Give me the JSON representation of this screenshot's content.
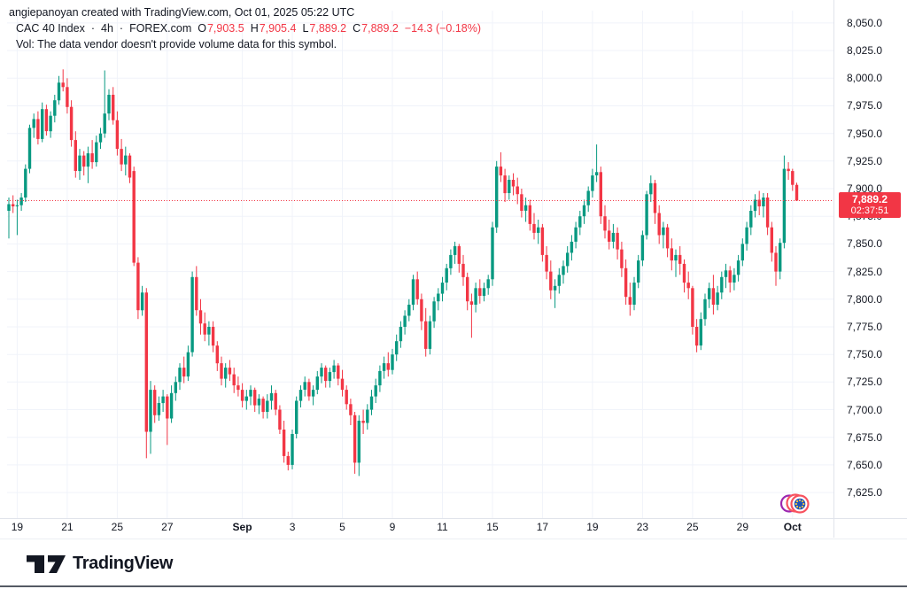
{
  "attribution": "angiepanoyan created with TradingView.com, Oct 01, 2025 05:22 UTC",
  "legend": {
    "symbol": "CAC 40 Index",
    "dot1": "·",
    "interval": "4h",
    "dot2": "·",
    "exchange": "FOREX.com",
    "o_label": "O",
    "o_value": "7,903.5",
    "h_label": "H",
    "h_value": "7,905.4",
    "l_label": "L",
    "l_value": "7,889.2",
    "c_label": "C",
    "c_value": "7,889.2",
    "change": "−14.3 (−0.18%)",
    "vol_text": "Vol: The data vendor doesn't provide volume data for this symbol."
  },
  "price_scale": {
    "last_price_label": "7,889.2",
    "countdown": "02:37:51",
    "ticks": [
      {
        "value": 8050,
        "label": "8,050.0"
      },
      {
        "value": 8025,
        "label": "8,025.0"
      },
      {
        "value": 8000,
        "label": "8,000.0"
      },
      {
        "value": 7975,
        "label": "7,975.0"
      },
      {
        "value": 7950,
        "label": "7,950.0"
      },
      {
        "value": 7925,
        "label": "7,925.0"
      },
      {
        "value": 7900,
        "label": "7,900.0"
      },
      {
        "value": 7875,
        "label": "7,875.0"
      },
      {
        "value": 7850,
        "label": "7,850.0"
      },
      {
        "value": 7825,
        "label": "7,825.0"
      },
      {
        "value": 7800,
        "label": "7,800.0"
      },
      {
        "value": 7775,
        "label": "7,775.0"
      },
      {
        "value": 7750,
        "label": "7,750.0"
      },
      {
        "value": 7725,
        "label": "7,725.0"
      },
      {
        "value": 7700,
        "label": "7,700.0"
      },
      {
        "value": 7675,
        "label": "7,675.0"
      },
      {
        "value": 7650,
        "label": "7,650.0"
      },
      {
        "value": 7625,
        "label": "7,625.0"
      }
    ]
  },
  "footer": {
    "brand": "TradingView"
  },
  "chart_data": {
    "type": "candlestick",
    "title": "CAC 40 Index",
    "interval": "4h",
    "exchange": "FOREX.com",
    "current_bar": {
      "open": 7903.5,
      "high": 7905.4,
      "low": 7889.2,
      "close": 7889.2,
      "change": -14.3,
      "change_pct": -0.18,
      "countdown": "02:37:51"
    },
    "last_price": 7889.2,
    "y_axis": {
      "min": 7625,
      "max": 8050,
      "step": 25
    },
    "colors": {
      "up": "#089981",
      "down": "#F23645",
      "grid": "#f0f3fa",
      "last_line": "#F23645"
    },
    "x_labels": [
      {
        "i": 2,
        "t": "19",
        "bold": false
      },
      {
        "i": 14,
        "t": "21",
        "bold": false
      },
      {
        "i": 26,
        "t": "25",
        "bold": false
      },
      {
        "i": 38,
        "t": "27",
        "bold": false
      },
      {
        "i": 56,
        "t": "Sep",
        "bold": true
      },
      {
        "i": 68,
        "t": "3",
        "bold": false
      },
      {
        "i": 80,
        "t": "5",
        "bold": false
      },
      {
        "i": 92,
        "t": "9",
        "bold": false
      },
      {
        "i": 104,
        "t": "11",
        "bold": false
      },
      {
        "i": 116,
        "t": "15",
        "bold": false
      },
      {
        "i": 128,
        "t": "17",
        "bold": false
      },
      {
        "i": 140,
        "t": "19",
        "bold": false
      },
      {
        "i": 152,
        "t": "23",
        "bold": false
      },
      {
        "i": 164,
        "t": "25",
        "bold": false
      },
      {
        "i": 176,
        "t": "29",
        "bold": false
      },
      {
        "i": 188,
        "t": "Oct",
        "bold": true
      }
    ],
    "candles": [
      [
        7880,
        7892,
        7855,
        7886
      ],
      [
        7886,
        7894,
        7878,
        7884
      ],
      [
        7884,
        7890,
        7858,
        7885
      ],
      [
        7885,
        7896,
        7880,
        7892
      ],
      [
        7892,
        7922,
        7888,
        7918
      ],
      [
        7918,
        7958,
        7914,
        7955
      ],
      [
        7955,
        7968,
        7946,
        7963
      ],
      [
        7963,
        7970,
        7940,
        7945
      ],
      [
        7945,
        7978,
        7942,
        7972
      ],
      [
        7972,
        7976,
        7948,
        7952
      ],
      [
        7952,
        7970,
        7946,
        7966
      ],
      [
        7966,
        7985,
        7960,
        7980
      ],
      [
        7980,
        8002,
        7976,
        7996
      ],
      [
        7996,
        8008,
        7988,
        7992
      ],
      [
        7992,
        8000,
        7968,
        7974
      ],
      [
        7974,
        7980,
        7938,
        7944
      ],
      [
        7944,
        7952,
        7910,
        7916
      ],
      [
        7916,
        7936,
        7908,
        7930
      ],
      [
        7930,
        7934,
        7912,
        7920
      ],
      [
        7920,
        7938,
        7905,
        7932
      ],
      [
        7932,
        7944,
        7918,
        7924
      ],
      [
        7924,
        7948,
        7920,
        7942
      ],
      [
        7942,
        7955,
        7936,
        7950
      ],
      [
        7950,
        8007,
        7946,
        7968
      ],
      [
        7968,
        7990,
        7962,
        7985
      ],
      [
        7985,
        7992,
        7958,
        7962
      ],
      [
        7962,
        7970,
        7930,
        7936
      ],
      [
        7936,
        7945,
        7916,
        7922
      ],
      [
        7922,
        7938,
        7912,
        7930
      ],
      [
        7930,
        7932,
        7905,
        7910
      ],
      [
        7916,
        7920,
        7830,
        7833
      ],
      [
        7833,
        7838,
        7782,
        7790
      ],
      [
        7790,
        7812,
        7785,
        7806
      ],
      [
        7806,
        7810,
        7656,
        7680
      ],
      [
        7680,
        7726,
        7660,
        7718
      ],
      [
        7718,
        7722,
        7688,
        7695
      ],
      [
        7695,
        7712,
        7690,
        7706
      ],
      [
        7706,
        7718,
        7698,
        7712
      ],
      [
        7712,
        7714,
        7668,
        7692
      ],
      [
        7692,
        7722,
        7688,
        7715
      ],
      [
        7715,
        7730,
        7708,
        7725
      ],
      [
        7725,
        7742,
        7718,
        7738
      ],
      [
        7738,
        7748,
        7724,
        7730
      ],
      [
        7730,
        7758,
        7726,
        7752
      ],
      [
        7752,
        7825,
        7748,
        7820
      ],
      [
        7820,
        7830,
        7785,
        7790
      ],
      [
        7790,
        7800,
        7768,
        7778
      ],
      [
        7778,
        7788,
        7762,
        7768
      ],
      [
        7768,
        7780,
        7758,
        7775
      ],
      [
        7775,
        7780,
        7752,
        7758
      ],
      [
        7758,
        7762,
        7735,
        7742
      ],
      [
        7742,
        7748,
        7722,
        7728
      ],
      [
        7728,
        7742,
        7720,
        7738
      ],
      [
        7738,
        7745,
        7726,
        7732
      ],
      [
        7732,
        7738,
        7715,
        7722
      ],
      [
        7722,
        7730,
        7712,
        7718
      ],
      [
        7718,
        7724,
        7702,
        7708
      ],
      [
        7708,
        7718,
        7700,
        7712
      ],
      [
        7712,
        7722,
        7704,
        7718
      ],
      [
        7718,
        7720,
        7698,
        7704
      ],
      [
        7704,
        7714,
        7696,
        7710
      ],
      [
        7710,
        7712,
        7692,
        7698
      ],
      [
        7698,
        7714,
        7692,
        7708
      ],
      [
        7708,
        7722,
        7700,
        7715
      ],
      [
        7715,
        7718,
        7695,
        7700
      ],
      [
        7700,
        7704,
        7678,
        7682
      ],
      [
        7682,
        7690,
        7652,
        7658
      ],
      [
        7658,
        7662,
        7645,
        7650
      ],
      [
        7650,
        7682,
        7646,
        7678
      ],
      [
        7678,
        7712,
        7674,
        7708
      ],
      [
        7708,
        7722,
        7702,
        7718
      ],
      [
        7718,
        7730,
        7712,
        7725
      ],
      [
        7725,
        7728,
        7708,
        7712
      ],
      [
        7712,
        7722,
        7704,
        7718
      ],
      [
        7718,
        7735,
        7714,
        7730
      ],
      [
        7730,
        7742,
        7724,
        7738
      ],
      [
        7738,
        7740,
        7720,
        7726
      ],
      [
        7726,
        7738,
        7720,
        7734
      ],
      [
        7734,
        7745,
        7728,
        7740
      ],
      [
        7740,
        7742,
        7722,
        7728
      ],
      [
        7728,
        7736,
        7712,
        7718
      ],
      [
        7718,
        7722,
        7700,
        7705
      ],
      [
        7705,
        7710,
        7686,
        7695
      ],
      [
        7695,
        7698,
        7642,
        7652
      ],
      [
        7652,
        7695,
        7640,
        7690
      ],
      [
        7690,
        7700,
        7678,
        7688
      ],
      [
        7688,
        7705,
        7682,
        7700
      ],
      [
        7700,
        7718,
        7695,
        7712
      ],
      [
        7712,
        7728,
        7706,
        7722
      ],
      [
        7722,
        7740,
        7716,
        7735
      ],
      [
        7735,
        7748,
        7728,
        7742
      ],
      [
        7742,
        7752,
        7730,
        7736
      ],
      [
        7736,
        7755,
        7732,
        7750
      ],
      [
        7750,
        7768,
        7744,
        7762
      ],
      [
        7762,
        7780,
        7756,
        7775
      ],
      [
        7775,
        7790,
        7768,
        7785
      ],
      [
        7785,
        7800,
        7780,
        7795
      ],
      [
        7795,
        7822,
        7790,
        7818
      ],
      [
        7818,
        7825,
        7795,
        7800
      ],
      [
        7800,
        7805,
        7772,
        7780
      ],
      [
        7780,
        7792,
        7748,
        7755
      ],
      [
        7755,
        7785,
        7750,
        7780
      ],
      [
        7780,
        7802,
        7774,
        7798
      ],
      [
        7798,
        7810,
        7790,
        7805
      ],
      [
        7805,
        7820,
        7798,
        7815
      ],
      [
        7815,
        7832,
        7808,
        7828
      ],
      [
        7828,
        7845,
        7822,
        7840
      ],
      [
        7840,
        7852,
        7832,
        7848
      ],
      [
        7848,
        7850,
        7824,
        7832
      ],
      [
        7832,
        7840,
        7812,
        7820
      ],
      [
        7820,
        7824,
        7790,
        7798
      ],
      [
        7798,
        7805,
        7765,
        7795
      ],
      [
        7795,
        7815,
        7788,
        7810
      ],
      [
        7810,
        7818,
        7796,
        7803
      ],
      [
        7803,
        7815,
        7798,
        7810
      ],
      [
        7810,
        7822,
        7804,
        7818
      ],
      [
        7818,
        7870,
        7812,
        7865
      ],
      [
        7865,
        7925,
        7860,
        7920
      ],
      [
        7920,
        7933,
        7906,
        7912
      ],
      [
        7912,
        7918,
        7888,
        7896
      ],
      [
        7896,
        7912,
        7890,
        7908
      ],
      [
        7908,
        7914,
        7894,
        7902
      ],
      [
        7902,
        7910,
        7886,
        7895
      ],
      [
        7895,
        7900,
        7874,
        7880
      ],
      [
        7880,
        7892,
        7870,
        7885
      ],
      [
        7885,
        7890,
        7862,
        7868
      ],
      [
        7868,
        7878,
        7854,
        7860
      ],
      [
        7860,
        7872,
        7850,
        7865
      ],
      [
        7865,
        7868,
        7834,
        7840
      ],
      [
        7840,
        7848,
        7818,
        7825
      ],
      [
        7825,
        7835,
        7800,
        7808
      ],
      [
        7808,
        7818,
        7792,
        7812
      ],
      [
        7812,
        7828,
        7805,
        7822
      ],
      [
        7822,
        7835,
        7814,
        7830
      ],
      [
        7830,
        7848,
        7824,
        7842
      ],
      [
        7842,
        7858,
        7835,
        7852
      ],
      [
        7852,
        7870,
        7846,
        7865
      ],
      [
        7865,
        7880,
        7858,
        7875
      ],
      [
        7875,
        7890,
        7868,
        7885
      ],
      [
        7885,
        7902,
        7879,
        7898
      ],
      [
        7898,
        7918,
        7892,
        7912
      ],
      [
        7912,
        7940,
        7906,
        7915
      ],
      [
        7915,
        7920,
        7868,
        7875
      ],
      [
        7875,
        7885,
        7855,
        7862
      ],
      [
        7862,
        7872,
        7845,
        7852
      ],
      [
        7852,
        7868,
        7846,
        7860
      ],
      [
        7860,
        7865,
        7836,
        7845
      ],
      [
        7845,
        7852,
        7820,
        7828
      ],
      [
        7828,
        7836,
        7795,
        7802
      ],
      [
        7802,
        7815,
        7785,
        7795
      ],
      [
        7795,
        7820,
        7790,
        7815
      ],
      [
        7815,
        7840,
        7810,
        7835
      ],
      [
        7835,
        7862,
        7830,
        7858
      ],
      [
        7858,
        7898,
        7854,
        7895
      ],
      [
        7895,
        7912,
        7888,
        7905
      ],
      [
        7905,
        7908,
        7868,
        7878
      ],
      [
        7878,
        7885,
        7850,
        7858
      ],
      [
        7858,
        7870,
        7846,
        7865
      ],
      [
        7865,
        7868,
        7838,
        7846
      ],
      [
        7846,
        7855,
        7826,
        7835
      ],
      [
        7835,
        7845,
        7820,
        7840
      ],
      [
        7840,
        7848,
        7822,
        7832
      ],
      [
        7832,
        7836,
        7806,
        7815
      ],
      [
        7815,
        7825,
        7800,
        7810
      ],
      [
        7810,
        7812,
        7768,
        7775
      ],
      [
        7775,
        7782,
        7752,
        7758
      ],
      [
        7758,
        7788,
        7754,
        7782
      ],
      [
        7782,
        7805,
        7776,
        7800
      ],
      [
        7800,
        7815,
        7792,
        7810
      ],
      [
        7810,
        7822,
        7786,
        7795
      ],
      [
        7795,
        7812,
        7790,
        7806
      ],
      [
        7806,
        7825,
        7800,
        7820
      ],
      [
        7820,
        7832,
        7810,
        7826
      ],
      [
        7826,
        7830,
        7806,
        7815
      ],
      [
        7815,
        7828,
        7808,
        7822
      ],
      [
        7822,
        7840,
        7816,
        7835
      ],
      [
        7835,
        7855,
        7830,
        7850
      ],
      [
        7850,
        7870,
        7844,
        7865
      ],
      [
        7865,
        7885,
        7858,
        7880
      ],
      [
        7880,
        7895,
        7874,
        7890
      ],
      [
        7890,
        7898,
        7876,
        7884
      ],
      [
        7884,
        7896,
        7874,
        7892
      ],
      [
        7892,
        7896,
        7858,
        7865
      ],
      [
        7865,
        7870,
        7834,
        7842
      ],
      [
        7842,
        7848,
        7812,
        7825
      ],
      [
        7825,
        7855,
        7818,
        7851
      ],
      [
        7851,
        7930,
        7846,
        7918
      ],
      [
        7918,
        7924,
        7908,
        7916
      ],
      [
        7916,
        7918,
        7898,
        7903.5
      ],
      [
        7903.5,
        7905.4,
        7889.2,
        7889.2
      ]
    ]
  }
}
